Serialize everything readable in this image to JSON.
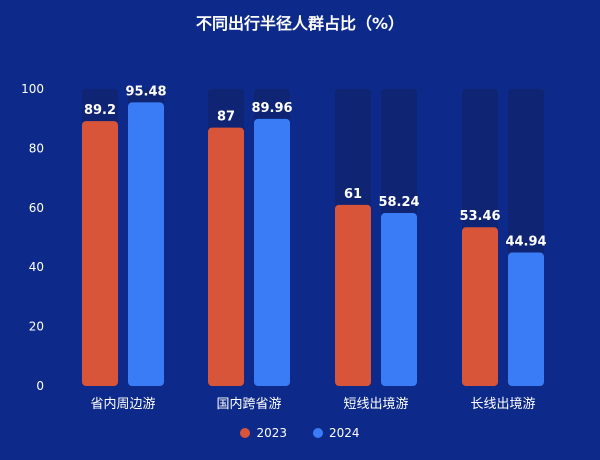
{
  "chart_data": {
    "type": "bar",
    "title": "不同出行半径人群占比（%）",
    "categories": [
      "省内周边游",
      "国内跨省游",
      "短线出境游",
      "长线出境游"
    ],
    "series": [
      {
        "name": "2023",
        "values": [
          89.2,
          87,
          61,
          53.46
        ],
        "color": "#d9553a"
      },
      {
        "name": "2024",
        "values": [
          95.48,
          89.96,
          58.24,
          44.94
        ],
        "color": "#3a7cf6"
      }
    ],
    "data_labels": [
      [
        "89.2",
        "87",
        "61",
        "53.46"
      ],
      [
        "95.48",
        "89.96",
        "58.24",
        "44.94"
      ]
    ],
    "ylim": [
      0,
      100
    ],
    "yticks": [
      0,
      20,
      40,
      60,
      80,
      100
    ],
    "xlabel": "",
    "ylabel": "",
    "legend": "bottom-center",
    "grid": false,
    "background_color": "#0d2a8a",
    "track_color": "#0f2574"
  }
}
